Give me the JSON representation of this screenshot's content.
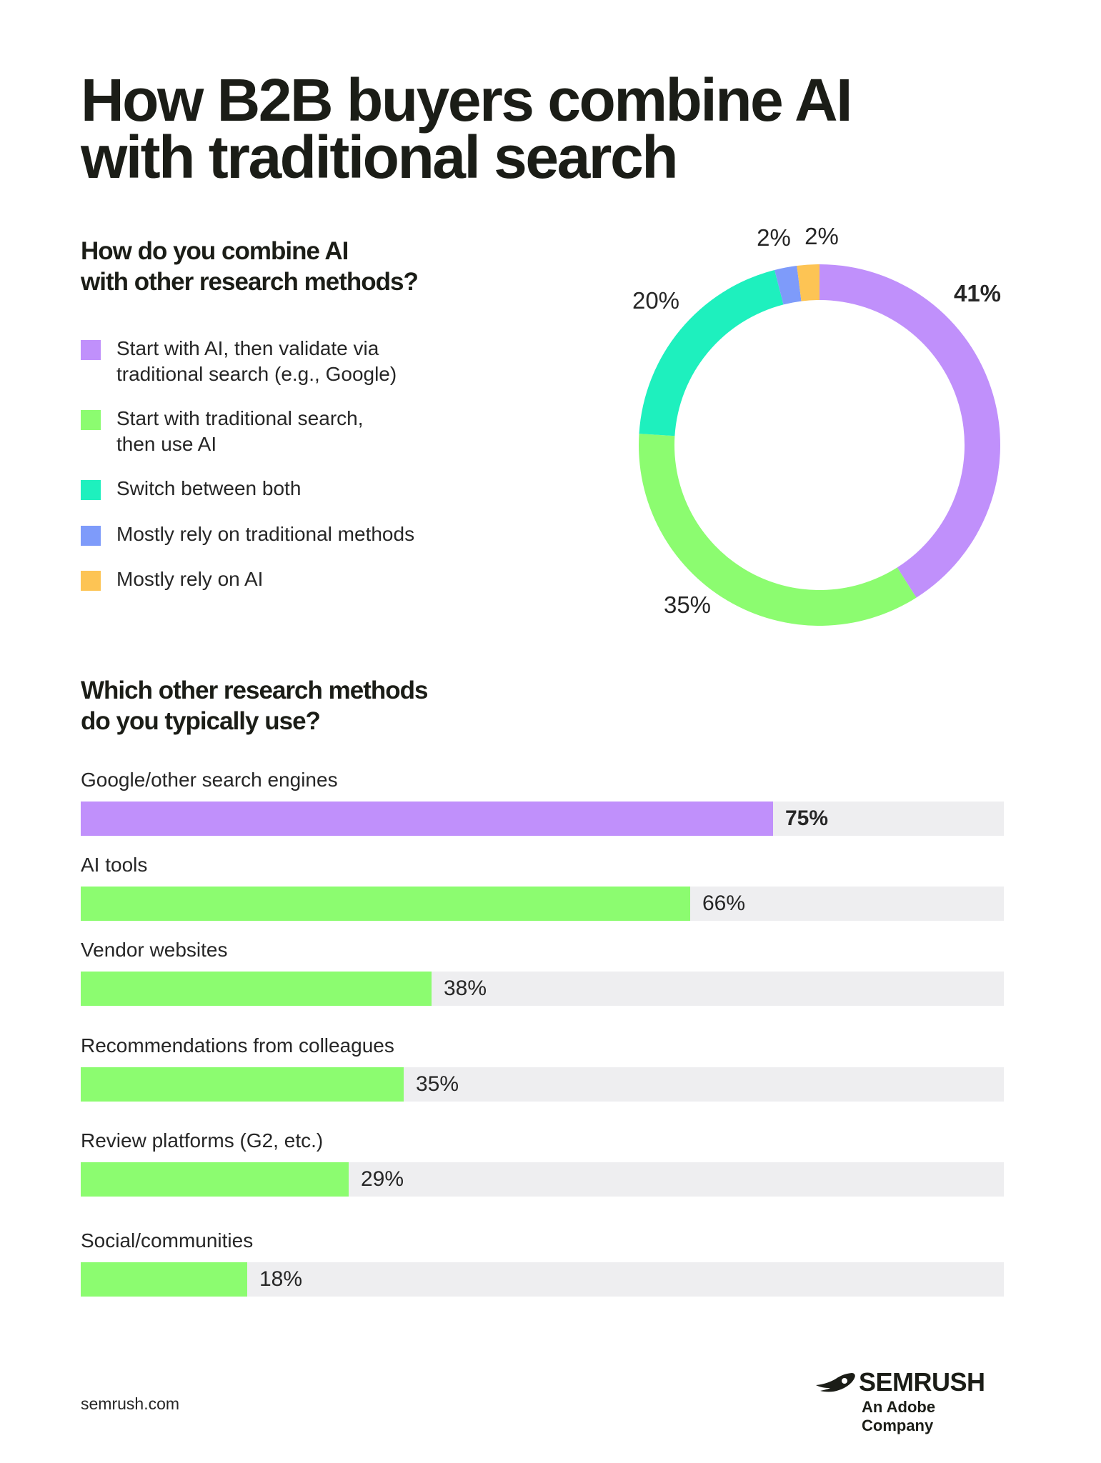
{
  "title_line1": "How B2B buyers combine AI",
  "title_line2": "with traditional search",
  "question1_line1": "How do you combine AI",
  "question1_line2": "with other research methods?",
  "question2_line1": "Which other research methods",
  "question2_line2": "do you typically use?",
  "footer_url": "semrush.com",
  "brand": {
    "name": "SEMRUSH",
    "tagline": "An Adobe Company"
  },
  "chart_data": [
    {
      "type": "pie",
      "subtype": "donut",
      "title": "How do you combine AI with other research methods?",
      "start": "top, clockwise",
      "categories": [
        "Start with AI, then validate via traditional search (e.g., Google)",
        "Start with traditional search, then use AI",
        "Switch between both",
        "Mostly rely on traditional methods",
        "Mostly rely on AI"
      ],
      "legend_lines": [
        [
          "Start with AI, then validate via",
          "traditional search (e.g., Google)"
        ],
        [
          "Start with traditional search,",
          "then use AI"
        ],
        [
          "Switch between both"
        ],
        [
          "Mostly rely on traditional methods"
        ],
        [
          "Mostly rely on AI"
        ]
      ],
      "values": [
        41,
        35,
        20,
        2,
        2
      ],
      "labels": [
        "41%",
        "35%",
        "20%",
        "2%",
        "2%"
      ],
      "colors": [
        "#c090fb",
        "#8cfc70",
        "#1ef0be",
        "#7e9bfa",
        "#fdc454"
      ],
      "legend": "left"
    },
    {
      "type": "bar",
      "orientation": "horizontal",
      "title": "Which other research methods do you typically use?",
      "categories": [
        "Google/other search engines",
        "AI tools",
        "Vendor websites",
        "Recommendations from colleagues",
        "Review platforms (G2, etc.)",
        "Social/communities"
      ],
      "values": [
        75,
        66,
        38,
        35,
        29,
        18
      ],
      "labels": [
        "75%",
        "66%",
        "38%",
        "35%",
        "29%",
        "18%"
      ],
      "colors": [
        "#c090fb",
        "#8cfc70",
        "#8cfc70",
        "#8cfc70",
        "#8cfc70",
        "#8cfc70"
      ],
      "track_color": "#eeeef0",
      "xlim": [
        0,
        100
      ]
    }
  ]
}
